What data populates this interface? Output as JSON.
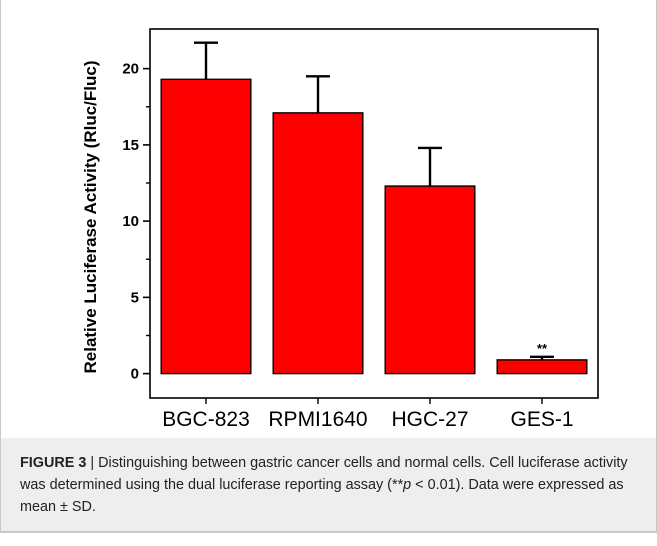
{
  "chart_data": {
    "type": "bar",
    "categories": [
      "BGC-823",
      "RPMI1640",
      "HGC-27",
      "GES-1"
    ],
    "values": [
      19.3,
      17.1,
      12.3,
      0.9
    ],
    "errors": [
      2.4,
      2.4,
      2.5,
      0.2
    ],
    "annotations": [
      "",
      "",
      "",
      "**"
    ],
    "ylabel": "Relative Luciferase Activity (Rluc/Fluc)",
    "xlabel": "",
    "ylim": [
      -1.6,
      22.6
    ],
    "yticks": [
      0,
      5,
      10,
      15,
      20
    ],
    "ytick_labels": [
      "0",
      "5",
      "10",
      "15",
      "20"
    ],
    "bar_color": "#ff0000",
    "grid": false,
    "legend": "none"
  },
  "caption": {
    "label": "FIGURE 3",
    "separator": "|",
    "text": "Distinguishing between gastric cancer cells and normal cells. Cell luciferase activity was determined using the dual luciferase reporting assay (",
    "sig_stars": "**",
    "sig_p": "p",
    "sig_rest": " < 0.01). Data were expressed as mean ± SD."
  }
}
